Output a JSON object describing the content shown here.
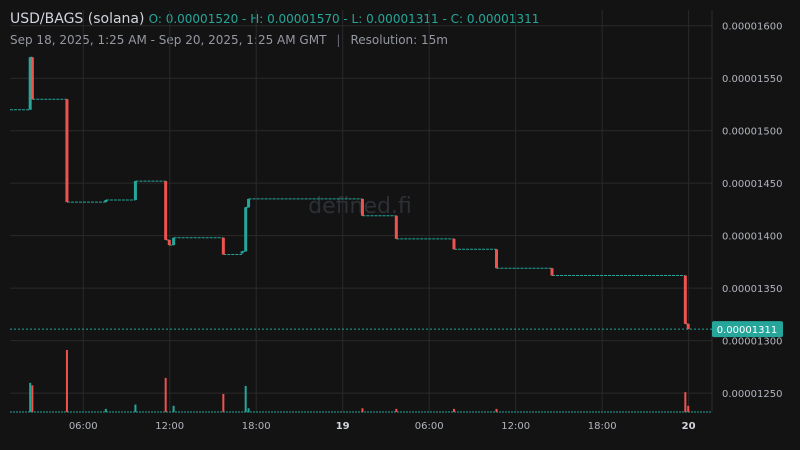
{
  "header": {
    "symbol": "USD/BAGS (solana)",
    "ohlc": "O: 0.00001520 - H: 0.00001570 - L: 0.00001311 - C: 0.00001311",
    "range": "Sep 18, 2025, 1:25 AM - Sep 20, 2025, 1:25 AM GMT",
    "separator": "|",
    "resolution": "Resolution: 15m"
  },
  "watermark": "defined.fi",
  "last_price_label": "0.00001311",
  "colors": {
    "up": "#26a69a",
    "down": "#ef5350",
    "background": "#131313",
    "grid": "#2a2a2a",
    "price_tag": "#26a69a"
  },
  "chart_data": {
    "type": "candlestick",
    "x_ticks": [
      {
        "t": 4.58,
        "label": "06:00",
        "bold": false
      },
      {
        "t": 10.58,
        "label": "12:00",
        "bold": false
      },
      {
        "t": 16.58,
        "label": "18:00",
        "bold": false
      },
      {
        "t": 22.58,
        "label": "19",
        "bold": true
      },
      {
        "t": 28.58,
        "label": "06:00",
        "bold": false
      },
      {
        "t": 34.58,
        "label": "12:00",
        "bold": false
      },
      {
        "t": 40.58,
        "label": "18:00",
        "bold": false
      },
      {
        "t": 46.58,
        "label": "20",
        "bold": true
      }
    ],
    "y_ticks": [
      "0.00001600",
      "0.00001550",
      "0.00001500",
      "0.00001450",
      "0.00001400",
      "0.00001350",
      "0.00001300",
      "0.00001250"
    ],
    "y_tick_values": [
      1.6e-05,
      1.55e-05,
      1.5e-05,
      1.45e-05,
      1.4e-05,
      1.35e-05,
      1.3e-05,
      1.25e-05
    ],
    "xlim": [
      -0.5,
      48.2
    ],
    "ylim": [
      1.232e-05,
      1.615e-05
    ],
    "last_price": 1.311e-05,
    "grid": true,
    "candles": [
      {
        "t": 0.9,
        "o": 1.52e-05,
        "h": 1.57e-05,
        "l": 1.52e-05,
        "c": 1.57e-05
      },
      {
        "t": 1.05,
        "o": 1.57e-05,
        "h": 1.57e-05,
        "l": 1.53e-05,
        "c": 1.53e-05
      },
      {
        "t": 3.45,
        "o": 1.53e-05,
        "h": 1.53e-05,
        "l": 1.432e-05,
        "c": 1.432e-05
      },
      {
        "t": 6.15,
        "o": 1.432e-05,
        "h": 1.434e-05,
        "l": 1.432e-05,
        "c": 1.434e-05
      },
      {
        "t": 8.2,
        "o": 1.434e-05,
        "h": 1.452e-05,
        "l": 1.434e-05,
        "c": 1.452e-05
      },
      {
        "t": 10.3,
        "o": 1.452e-05,
        "h": 1.452e-05,
        "l": 1.396e-05,
        "c": 1.396e-05
      },
      {
        "t": 10.55,
        "o": 1.396e-05,
        "h": 1.396e-05,
        "l": 1.391e-05,
        "c": 1.391e-05
      },
      {
        "t": 10.85,
        "o": 1.391e-05,
        "h": 1.398e-05,
        "l": 1.391e-05,
        "c": 1.398e-05
      },
      {
        "t": 14.3,
        "o": 1.398e-05,
        "h": 1.398e-05,
        "l": 1.382e-05,
        "c": 1.382e-05
      },
      {
        "t": 15.6,
        "o": 1.383e-05,
        "h": 1.385e-05,
        "l": 1.383e-05,
        "c": 1.385e-05
      },
      {
        "t": 15.85,
        "o": 1.385e-05,
        "h": 1.427e-05,
        "l": 1.385e-05,
        "c": 1.427e-05
      },
      {
        "t": 16.05,
        "o": 1.427e-05,
        "h": 1.435e-05,
        "l": 1.427e-05,
        "c": 1.435e-05
      },
      {
        "t": 23.95,
        "o": 1.435e-05,
        "h": 1.435e-05,
        "l": 1.419e-05,
        "c": 1.419e-05
      },
      {
        "t": 26.3,
        "o": 1.419e-05,
        "h": 1.419e-05,
        "l": 1.397e-05,
        "c": 1.397e-05
      },
      {
        "t": 30.3,
        "o": 1.397e-05,
        "h": 1.397e-05,
        "l": 1.387e-05,
        "c": 1.387e-05
      },
      {
        "t": 33.25,
        "o": 1.387e-05,
        "h": 1.387e-05,
        "l": 1.369e-05,
        "c": 1.369e-05
      },
      {
        "t": 37.1,
        "o": 1.369e-05,
        "h": 1.369e-05,
        "l": 1.362e-05,
        "c": 1.362e-05
      },
      {
        "t": 46.35,
        "o": 1.362e-05,
        "h": 1.362e-05,
        "l": 1.316e-05,
        "c": 1.316e-05
      },
      {
        "t": 46.55,
        "o": 1.316e-05,
        "h": 1.316e-05,
        "l": 1.311e-05,
        "c": 1.311e-05
      }
    ],
    "volume_max": 100,
    "volume": [
      {
        "t": 0.9,
        "v": 47,
        "dir": "up"
      },
      {
        "t": 1.05,
        "v": 43,
        "dir": "down"
      },
      {
        "t": 3.45,
        "v": 100,
        "dir": "down"
      },
      {
        "t": 6.15,
        "v": 5,
        "dir": "up"
      },
      {
        "t": 8.2,
        "v": 12,
        "dir": "up"
      },
      {
        "t": 10.3,
        "v": 55,
        "dir": "down"
      },
      {
        "t": 10.85,
        "v": 10,
        "dir": "up"
      },
      {
        "t": 14.3,
        "v": 29,
        "dir": "down"
      },
      {
        "t": 15.85,
        "v": 42,
        "dir": "up"
      },
      {
        "t": 16.05,
        "v": 6,
        "dir": "up"
      },
      {
        "t": 23.95,
        "v": 6,
        "dir": "down"
      },
      {
        "t": 26.3,
        "v": 5,
        "dir": "down"
      },
      {
        "t": 30.3,
        "v": 5,
        "dir": "down"
      },
      {
        "t": 33.25,
        "v": 5,
        "dir": "down"
      },
      {
        "t": 46.35,
        "v": 32,
        "dir": "down"
      },
      {
        "t": 46.55,
        "v": 10,
        "dir": "down"
      }
    ]
  }
}
